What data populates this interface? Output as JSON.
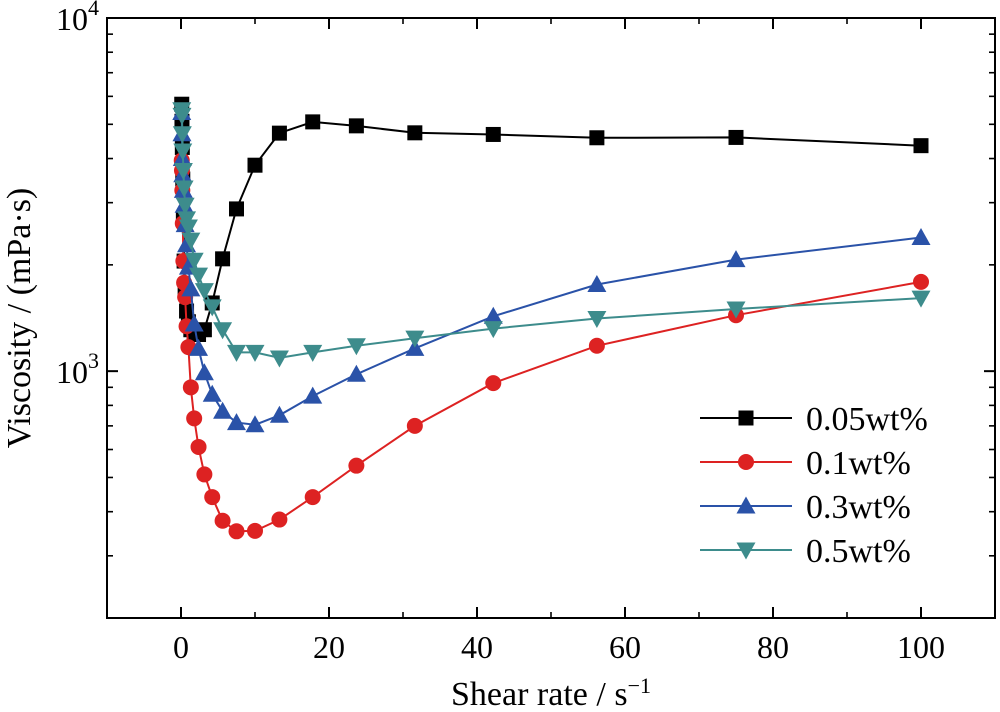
{
  "chart_data": {
    "type": "line",
    "xlabel": "Shear rate / s",
    "xlabel_sup": "−1",
    "ylabel": "Viscosity / (mPa·s)",
    "x_scale": "linear",
    "y_scale": "log",
    "xlim": [
      -10,
      110
    ],
    "ylim": [
      200,
      10000
    ],
    "x_ticks": [
      0,
      20,
      40,
      60,
      80,
      100
    ],
    "x_tick_labels": [
      "0",
      "20",
      "40",
      "60",
      "80",
      "100"
    ],
    "y_ticks": [
      1000,
      10000
    ],
    "y_tick_labels": [
      {
        "base": "10",
        "exp": "3"
      },
      {
        "base": "10",
        "exp": "4"
      }
    ],
    "grid": false,
    "legend_position": "bottom-right",
    "series": [
      {
        "name": "0.05wt%",
        "color": "#000000",
        "marker": "square",
        "x": [
          0.1,
          0.13,
          0.18,
          0.24,
          0.32,
          0.42,
          0.56,
          0.75,
          1.0,
          1.33,
          1.78,
          2.37,
          3.16,
          4.22,
          5.62,
          7.5,
          10.0,
          13.3,
          17.8,
          23.7,
          31.6,
          42.2,
          56.2,
          75.0,
          100.0
        ],
        "y": [
          5700,
          5100,
          4300,
          3500,
          2700,
          2050,
          1700,
          1480,
          1380,
          1310,
          1270,
          1270,
          1310,
          1560,
          2080,
          2880,
          3830,
          4720,
          5080,
          4950,
          4730,
          4680,
          4580,
          4590,
          4350
        ]
      },
      {
        "name": "0.1wt%",
        "color": "#dd2222",
        "marker": "circle",
        "x": [
          0.1,
          0.13,
          0.18,
          0.24,
          0.32,
          0.42,
          0.56,
          0.75,
          1.0,
          1.33,
          1.78,
          2.37,
          3.16,
          4.22,
          5.62,
          7.5,
          10.0,
          13.3,
          17.8,
          23.7,
          31.6,
          42.2,
          56.2,
          75.0,
          100.0
        ],
        "y": [
          3950,
          3700,
          3250,
          2620,
          2050,
          1780,
          1620,
          1340,
          1170,
          900,
          735,
          610,
          510,
          440,
          377,
          352,
          353,
          380,
          440,
          540,
          700,
          925,
          1180,
          1440,
          1790
        ]
      },
      {
        "name": "0.3wt%",
        "color": "#2a52a8",
        "marker": "triangle-up",
        "x": [
          0.1,
          0.13,
          0.18,
          0.24,
          0.32,
          0.42,
          0.56,
          0.75,
          1.0,
          1.33,
          1.78,
          2.37,
          3.16,
          4.22,
          5.62,
          7.5,
          10.0,
          13.3,
          17.8,
          23.7,
          31.6,
          42.2,
          56.2,
          75.0,
          100.0
        ],
        "y": [
          5400,
          4700,
          4000,
          3600,
          3250,
          2950,
          2600,
          2280,
          1970,
          1710,
          1360,
          1160,
          990,
          860,
          770,
          715,
          705,
          750,
          850,
          980,
          1160,
          1430,
          1760,
          2070,
          2390
        ]
      },
      {
        "name": "0.5wt%",
        "color": "#3d8c8c",
        "marker": "triangle-down",
        "x": [
          0.1,
          0.13,
          0.18,
          0.24,
          0.32,
          0.42,
          0.56,
          0.75,
          1.0,
          1.33,
          1.78,
          2.37,
          3.16,
          4.22,
          5.62,
          7.5,
          10.0,
          13.3,
          17.8,
          23.7,
          31.6,
          42.2,
          56.2,
          75.0,
          100.0
        ],
        "y": [
          5500,
          5300,
          4700,
          4200,
          3700,
          3300,
          2950,
          2700,
          2560,
          2350,
          2060,
          1870,
          1690,
          1520,
          1310,
          1130,
          1130,
          1090,
          1130,
          1180,
          1240,
          1320,
          1410,
          1500,
          1610
        ]
      }
    ]
  }
}
